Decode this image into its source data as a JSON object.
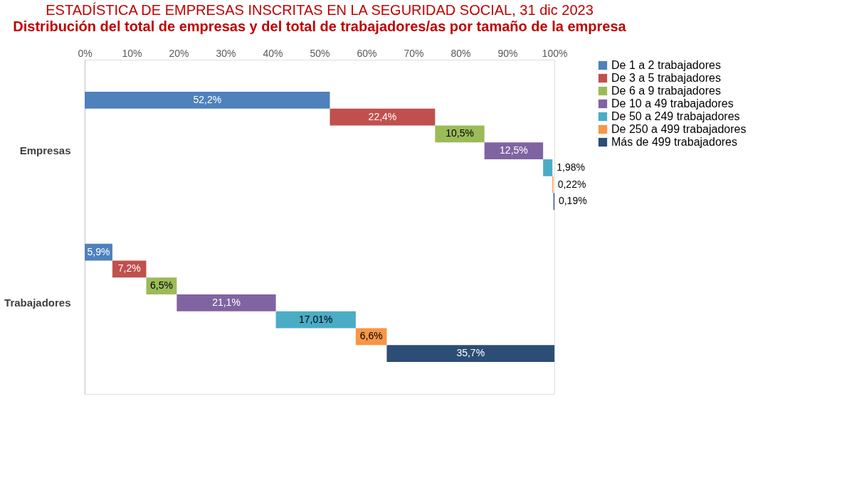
{
  "chart_data": {
    "type": "bar",
    "orientation": "horizontal",
    "stacked": true,
    "title": "ESTADÍSTICA  DE EMPRESAS INSCRITAS EN LA SEGURIDAD SOCIAL, 31 dic 2023",
    "subtitle": "Distribución del total de empresas y del total de trabajadores/as por tamaño de la empresa",
    "categories": [
      "Empresas",
      "Trabajadores"
    ],
    "series": [
      {
        "name": "De 1 a 2 trabajadores",
        "color": "#4f81bd",
        "values": [
          52.2,
          5.9
        ],
        "value_labels": [
          "52,2%",
          "5,9%"
        ]
      },
      {
        "name": "De 3 a 5 trabajadores",
        "color": "#c0504d",
        "values": [
          22.4,
          7.2
        ],
        "value_labels": [
          "22,4%",
          "7,2%"
        ]
      },
      {
        "name": "De 6 a 9 trabajadores",
        "color": "#9bbb59",
        "values": [
          10.5,
          6.5
        ],
        "value_labels": [
          "10,5%",
          "6,5%"
        ]
      },
      {
        "name": "De 10 a 49 trabajadores",
        "color": "#8064a2",
        "values": [
          12.5,
          21.1
        ],
        "value_labels": [
          "12,5%",
          "21,1%"
        ]
      },
      {
        "name": "De  50 a 249 trabajadores",
        "color": "#4bacc6",
        "values": [
          1.98,
          17.01
        ],
        "value_labels": [
          "1,98%",
          "17,01%"
        ]
      },
      {
        "name": "De 250 a 499 trabajadores",
        "color": "#f79646",
        "values": [
          0.22,
          6.6
        ],
        "value_labels": [
          "0,22%",
          "6,6%"
        ]
      },
      {
        "name": "Más de 499 trabajadores",
        "color": "#2c4d75",
        "values": [
          0.19,
          35.7
        ],
        "value_labels": [
          "0,19%",
          "35,7%"
        ]
      }
    ],
    "xlim": [
      0,
      100
    ],
    "xticks": [
      {
        "value": 0,
        "label": "0%"
      },
      {
        "value": 10,
        "label": "10%"
      },
      {
        "value": 20,
        "label": "20%"
      },
      {
        "value": 30,
        "label": "30%"
      },
      {
        "value": 40,
        "label": "40%"
      },
      {
        "value": 50,
        "label": "50%"
      },
      {
        "value": 60,
        "label": "60%"
      },
      {
        "value": 70,
        "label": "70%"
      },
      {
        "value": 80,
        "label": "80%"
      },
      {
        "value": 90,
        "label": "90%"
      },
      {
        "value": 100,
        "label": "100%"
      }
    ],
    "grid": false,
    "legend": "right"
  }
}
